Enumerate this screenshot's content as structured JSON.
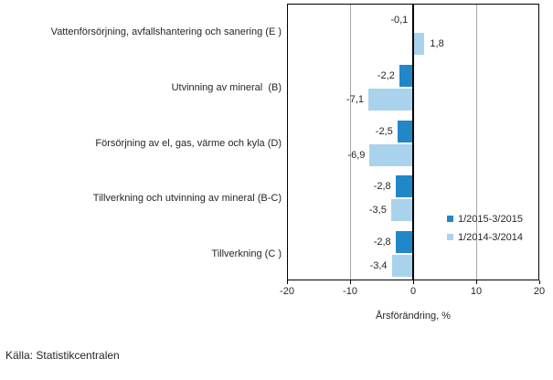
{
  "chart_data": {
    "type": "bar",
    "orientation": "horizontal",
    "title": "",
    "xlabel": "Årsförändring, %",
    "ylabel": "",
    "xlim": [
      -20,
      20
    ],
    "xticks": [
      -20,
      -10,
      0,
      10,
      20
    ],
    "xtick_labels": [
      "-20",
      "-10",
      "0",
      "10",
      "20"
    ],
    "grid": "vertical gridlines at -10 and 10, zero axis emphasized",
    "legend_position": "inside right",
    "categories": [
      "Vattenförsörjning, avfallshantering och sanering (E )",
      "Utvinning av mineral  (B)",
      "Försörjning av el, gas, värme och kyla (D)",
      "Tillverkning och utvinning av mineral (B-C)",
      "Tillverkning (C )"
    ],
    "series": [
      {
        "name": "1/2015-3/2015",
        "color": "#2287C8",
        "values": [
          -0.1,
          -2.2,
          -2.5,
          -2.8,
          -2.8
        ],
        "value_labels": [
          "-0,1",
          "-2,2",
          "-2,5",
          "-2,8",
          "-2,8"
        ]
      },
      {
        "name": "1/2014-3/2014",
        "color": "#A9D3EC",
        "values": [
          1.8,
          -7.1,
          -6.9,
          -3.5,
          -3.4
        ],
        "value_labels": [
          "1,8",
          "-7,1",
          "-6,9",
          "-3,5",
          "-3,4"
        ]
      }
    ]
  },
  "colors": {
    "series_dark": "#2287C8",
    "series_light": "#A9D3EC",
    "gridline": "#A6A6A6",
    "axis": "#000000",
    "text": "#262626",
    "background": "#FFFFFF"
  },
  "source": "Källa: Statistikcentralen"
}
